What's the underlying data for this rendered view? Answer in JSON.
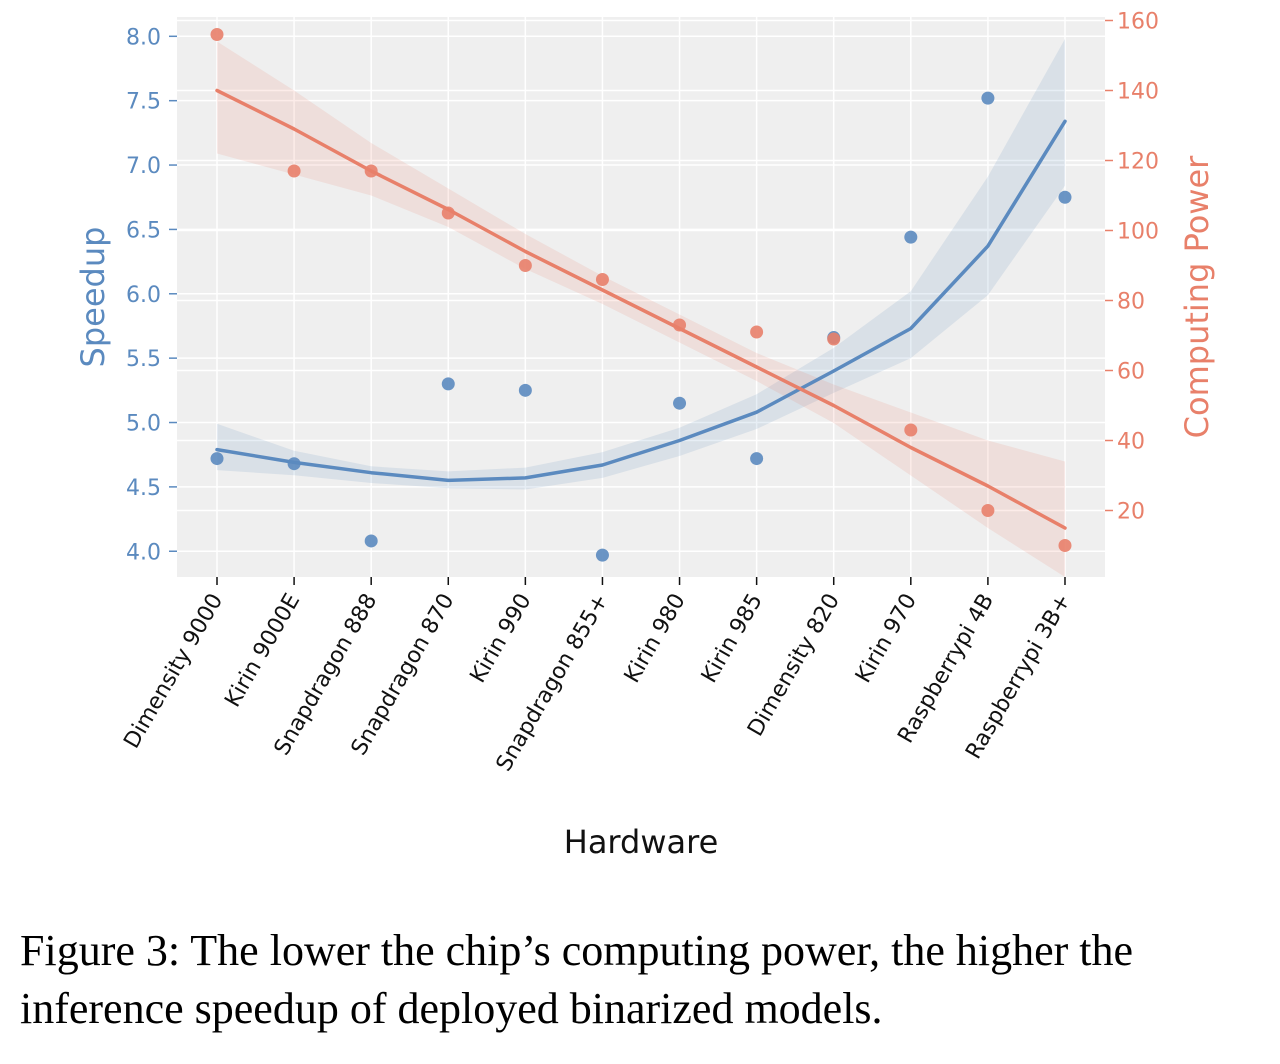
{
  "chart_data": {
    "type": "scatter",
    "xlabel": "Hardware",
    "categories": [
      "Dimensity 9000",
      "Kirin 9000E",
      "Snapdragon 888",
      "Snapdragon 870",
      "Kirin 990",
      "Snapdragon 855+",
      "Kirin 980",
      "Kirin 985",
      "Dimensity 820",
      "Kirin 970",
      "Raspberrypi 4B",
      "Raspberrypi 3B+"
    ],
    "grid": true,
    "y_left": {
      "label": "Speedup",
      "ylim": [
        3.8,
        8.15
      ],
      "ticks": [
        "4.0",
        "4.5",
        "5.0",
        "5.5",
        "6.0",
        "6.5",
        "7.0",
        "7.5",
        "8.0"
      ],
      "color": "#5b8abf"
    },
    "y_right": {
      "label": "Computing Power",
      "ylim": [
        1,
        161
      ],
      "ticks": [
        "20",
        "40",
        "60",
        "80",
        "100",
        "120",
        "140",
        "160"
      ],
      "color": "#e8806a"
    },
    "series": [
      {
        "axis": "left",
        "color": "#5b8abf",
        "values": [
          4.72,
          4.68,
          4.08,
          5.3,
          5.25,
          3.97,
          5.15,
          4.72,
          5.66,
          6.44,
          7.52,
          6.75
        ],
        "fit": "quadratic",
        "fit_values": [
          4.79,
          4.69,
          4.61,
          4.55,
          4.57,
          4.67,
          4.86,
          5.08,
          5.4,
          5.73,
          6.37,
          7.34
        ],
        "band_upper": [
          4.99,
          4.78,
          4.66,
          4.62,
          4.65,
          4.77,
          4.96,
          5.22,
          5.58,
          6.02,
          6.91,
          7.98
        ],
        "band_lower": [
          4.63,
          4.59,
          4.53,
          4.49,
          4.48,
          4.57,
          4.74,
          4.95,
          5.23,
          5.5,
          5.99,
          6.84
        ]
      },
      {
        "axis": "right",
        "color": "#e8806a",
        "values": [
          156,
          117,
          117,
          105,
          90,
          86,
          73,
          71,
          69,
          43,
          20,
          10
        ],
        "fit": "linear",
        "fit_values": [
          140,
          129,
          117,
          106,
          94,
          83,
          72,
          61,
          50,
          38,
          27,
          15
        ],
        "band_upper": [
          154,
          140,
          125,
          112,
          99,
          87,
          76,
          65,
          56,
          48,
          40,
          34
        ],
        "band_lower": [
          122,
          116,
          110,
          101,
          89,
          79,
          68,
          57,
          45,
          30,
          15,
          -4
        ]
      }
    ]
  },
  "caption": "Figure 3: The lower the chip’s computing power, the higher the inference speedup of deployed binarized models."
}
